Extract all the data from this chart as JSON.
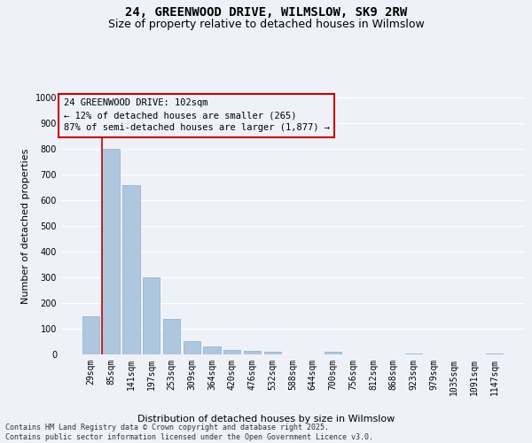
{
  "title": "24, GREENWOOD DRIVE, WILMSLOW, SK9 2RW",
  "subtitle": "Size of property relative to detached houses in Wilmslow",
  "xlabel": "Distribution of detached houses by size in Wilmslow",
  "ylabel": "Number of detached properties",
  "categories": [
    "29sqm",
    "85sqm",
    "141sqm",
    "197sqm",
    "253sqm",
    "309sqm",
    "364sqm",
    "420sqm",
    "476sqm",
    "532sqm",
    "588sqm",
    "644sqm",
    "700sqm",
    "756sqm",
    "812sqm",
    "868sqm",
    "923sqm",
    "979sqm",
    "1035sqm",
    "1091sqm",
    "1147sqm"
  ],
  "values": [
    148,
    800,
    660,
    300,
    138,
    52,
    30,
    16,
    15,
    10,
    0,
    0,
    12,
    0,
    0,
    0,
    5,
    0,
    0,
    0,
    5
  ],
  "bar_color": "#aec6de",
  "bar_edge_color": "#8aafc8",
  "vline_color": "#cc0000",
  "vline_x_index": 1,
  "ylim": [
    0,
    1000
  ],
  "yticks": [
    0,
    100,
    200,
    300,
    400,
    500,
    600,
    700,
    800,
    900,
    1000
  ],
  "annotation_title": "24 GREENWOOD DRIVE: 102sqm",
  "annotation_line1": "← 12% of detached houses are smaller (265)",
  "annotation_line2": "87% of semi-detached houses are larger (1,877) →",
  "annotation_box_color": "#cc0000",
  "background_color": "#eef2f8",
  "grid_color": "#ffffff",
  "footer_line1": "Contains HM Land Registry data © Crown copyright and database right 2025.",
  "footer_line2": "Contains public sector information licensed under the Open Government Licence v3.0.",
  "title_fontsize": 10,
  "subtitle_fontsize": 9,
  "axis_label_fontsize": 8,
  "tick_fontsize": 7,
  "annotation_fontsize": 7.5,
  "footer_fontsize": 6
}
